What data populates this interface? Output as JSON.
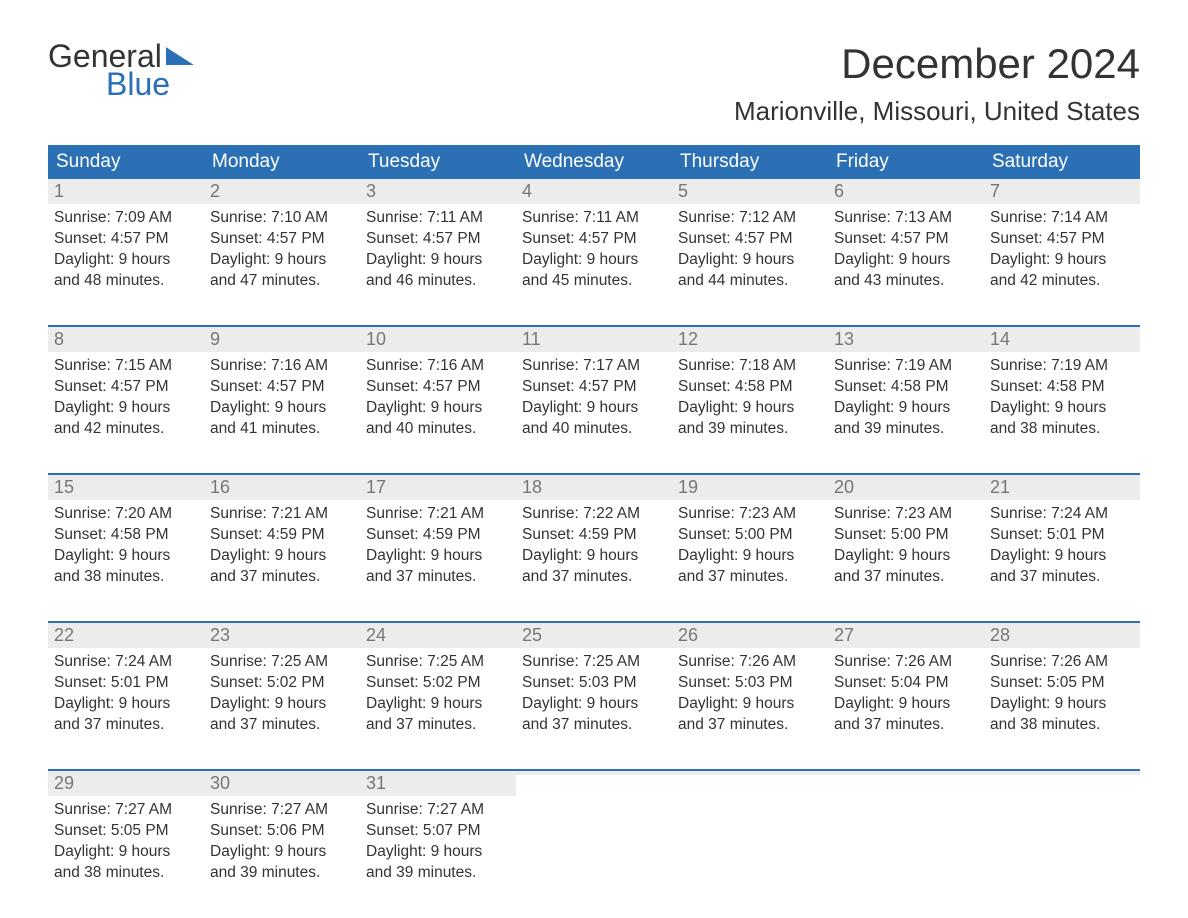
{
  "logo": {
    "top": "General",
    "bottom": "Blue"
  },
  "title": "December 2024",
  "location": "Marionville, Missouri, United States",
  "colors": {
    "header_bg": "#2b6fb5",
    "header_text": "#ffffff",
    "daynum_bg": "#ececec",
    "daynum_text": "#777777",
    "body_text": "#333333",
    "week_divider": "#2b6fb5"
  },
  "day_headers": [
    "Sunday",
    "Monday",
    "Tuesday",
    "Wednesday",
    "Thursday",
    "Friday",
    "Saturday"
  ],
  "weeks": [
    [
      {
        "n": "1",
        "sunrise": "Sunrise: 7:09 AM",
        "sunset": "Sunset: 4:57 PM",
        "daylight": "Daylight: 9 hours\nand 48 minutes."
      },
      {
        "n": "2",
        "sunrise": "Sunrise: 7:10 AM",
        "sunset": "Sunset: 4:57 PM",
        "daylight": "Daylight: 9 hours\nand 47 minutes."
      },
      {
        "n": "3",
        "sunrise": "Sunrise: 7:11 AM",
        "sunset": "Sunset: 4:57 PM",
        "daylight": "Daylight: 9 hours\nand 46 minutes."
      },
      {
        "n": "4",
        "sunrise": "Sunrise: 7:11 AM",
        "sunset": "Sunset: 4:57 PM",
        "daylight": "Daylight: 9 hours\nand 45 minutes."
      },
      {
        "n": "5",
        "sunrise": "Sunrise: 7:12 AM",
        "sunset": "Sunset: 4:57 PM",
        "daylight": "Daylight: 9 hours\nand 44 minutes."
      },
      {
        "n": "6",
        "sunrise": "Sunrise: 7:13 AM",
        "sunset": "Sunset: 4:57 PM",
        "daylight": "Daylight: 9 hours\nand 43 minutes."
      },
      {
        "n": "7",
        "sunrise": "Sunrise: 7:14 AM",
        "sunset": "Sunset: 4:57 PM",
        "daylight": "Daylight: 9 hours\nand 42 minutes."
      }
    ],
    [
      {
        "n": "8",
        "sunrise": "Sunrise: 7:15 AM",
        "sunset": "Sunset: 4:57 PM",
        "daylight": "Daylight: 9 hours\nand 42 minutes."
      },
      {
        "n": "9",
        "sunrise": "Sunrise: 7:16 AM",
        "sunset": "Sunset: 4:57 PM",
        "daylight": "Daylight: 9 hours\nand 41 minutes."
      },
      {
        "n": "10",
        "sunrise": "Sunrise: 7:16 AM",
        "sunset": "Sunset: 4:57 PM",
        "daylight": "Daylight: 9 hours\nand 40 minutes."
      },
      {
        "n": "11",
        "sunrise": "Sunrise: 7:17 AM",
        "sunset": "Sunset: 4:57 PM",
        "daylight": "Daylight: 9 hours\nand 40 minutes."
      },
      {
        "n": "12",
        "sunrise": "Sunrise: 7:18 AM",
        "sunset": "Sunset: 4:58 PM",
        "daylight": "Daylight: 9 hours\nand 39 minutes."
      },
      {
        "n": "13",
        "sunrise": "Sunrise: 7:19 AM",
        "sunset": "Sunset: 4:58 PM",
        "daylight": "Daylight: 9 hours\nand 39 minutes."
      },
      {
        "n": "14",
        "sunrise": "Sunrise: 7:19 AM",
        "sunset": "Sunset: 4:58 PM",
        "daylight": "Daylight: 9 hours\nand 38 minutes."
      }
    ],
    [
      {
        "n": "15",
        "sunrise": "Sunrise: 7:20 AM",
        "sunset": "Sunset: 4:58 PM",
        "daylight": "Daylight: 9 hours\nand 38 minutes."
      },
      {
        "n": "16",
        "sunrise": "Sunrise: 7:21 AM",
        "sunset": "Sunset: 4:59 PM",
        "daylight": "Daylight: 9 hours\nand 37 minutes."
      },
      {
        "n": "17",
        "sunrise": "Sunrise: 7:21 AM",
        "sunset": "Sunset: 4:59 PM",
        "daylight": "Daylight: 9 hours\nand 37 minutes."
      },
      {
        "n": "18",
        "sunrise": "Sunrise: 7:22 AM",
        "sunset": "Sunset: 4:59 PM",
        "daylight": "Daylight: 9 hours\nand 37 minutes."
      },
      {
        "n": "19",
        "sunrise": "Sunrise: 7:23 AM",
        "sunset": "Sunset: 5:00 PM",
        "daylight": "Daylight: 9 hours\nand 37 minutes."
      },
      {
        "n": "20",
        "sunrise": "Sunrise: 7:23 AM",
        "sunset": "Sunset: 5:00 PM",
        "daylight": "Daylight: 9 hours\nand 37 minutes."
      },
      {
        "n": "21",
        "sunrise": "Sunrise: 7:24 AM",
        "sunset": "Sunset: 5:01 PM",
        "daylight": "Daylight: 9 hours\nand 37 minutes."
      }
    ],
    [
      {
        "n": "22",
        "sunrise": "Sunrise: 7:24 AM",
        "sunset": "Sunset: 5:01 PM",
        "daylight": "Daylight: 9 hours\nand 37 minutes."
      },
      {
        "n": "23",
        "sunrise": "Sunrise: 7:25 AM",
        "sunset": "Sunset: 5:02 PM",
        "daylight": "Daylight: 9 hours\nand 37 minutes."
      },
      {
        "n": "24",
        "sunrise": "Sunrise: 7:25 AM",
        "sunset": "Sunset: 5:02 PM",
        "daylight": "Daylight: 9 hours\nand 37 minutes."
      },
      {
        "n": "25",
        "sunrise": "Sunrise: 7:25 AM",
        "sunset": "Sunset: 5:03 PM",
        "daylight": "Daylight: 9 hours\nand 37 minutes."
      },
      {
        "n": "26",
        "sunrise": "Sunrise: 7:26 AM",
        "sunset": "Sunset: 5:03 PM",
        "daylight": "Daylight: 9 hours\nand 37 minutes."
      },
      {
        "n": "27",
        "sunrise": "Sunrise: 7:26 AM",
        "sunset": "Sunset: 5:04 PM",
        "daylight": "Daylight: 9 hours\nand 37 minutes."
      },
      {
        "n": "28",
        "sunrise": "Sunrise: 7:26 AM",
        "sunset": "Sunset: 5:05 PM",
        "daylight": "Daylight: 9 hours\nand 38 minutes."
      }
    ],
    [
      {
        "n": "29",
        "sunrise": "Sunrise: 7:27 AM",
        "sunset": "Sunset: 5:05 PM",
        "daylight": "Daylight: 9 hours\nand 38 minutes."
      },
      {
        "n": "30",
        "sunrise": "Sunrise: 7:27 AM",
        "sunset": "Sunset: 5:06 PM",
        "daylight": "Daylight: 9 hours\nand 39 minutes."
      },
      {
        "n": "31",
        "sunrise": "Sunrise: 7:27 AM",
        "sunset": "Sunset: 5:07 PM",
        "daylight": "Daylight: 9 hours\nand 39 minutes."
      },
      {
        "empty": true
      },
      {
        "empty": true
      },
      {
        "empty": true
      },
      {
        "empty": true
      }
    ]
  ]
}
